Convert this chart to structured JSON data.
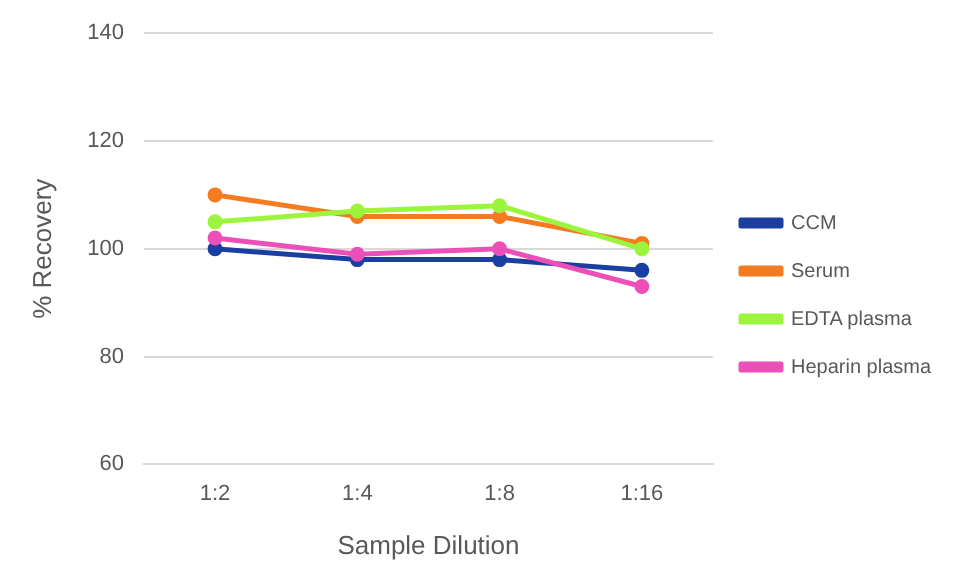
{
  "chart_data": {
    "type": "line",
    "xlabel": "Sample Dilution",
    "ylabel": "% Recovery",
    "categories": [
      "1:2",
      "1:4",
      "1:8",
      "1:16"
    ],
    "series": [
      {
        "name": "CCM",
        "color": "#1a3fa0",
        "values": [
          100,
          98,
          98,
          96
        ]
      },
      {
        "name": "Serum",
        "color": "#f47b20",
        "values": [
          110,
          106,
          106,
          101
        ]
      },
      {
        "name": "EDTA plasma",
        "color": "#9cf53c",
        "values": [
          105,
          107,
          108,
          100
        ]
      },
      {
        "name": "Heparin plasma",
        "color": "#ec4fb8",
        "values": [
          102,
          99,
          100,
          93
        ]
      }
    ],
    "ylim": [
      60,
      140
    ],
    "yticks": [
      60,
      80,
      100,
      120,
      140
    ],
    "grid": "y",
    "legend": "right",
    "marker": "circle",
    "line_style": "solid"
  }
}
